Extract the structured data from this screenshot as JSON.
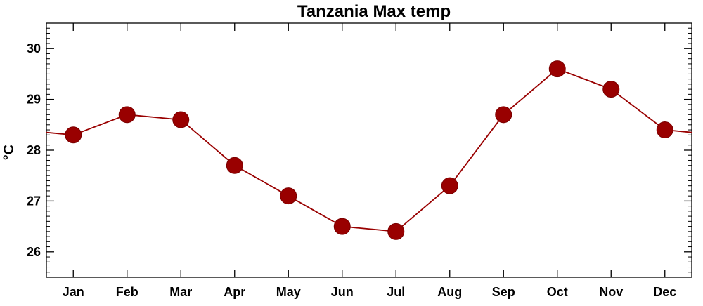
{
  "chart_data": {
    "type": "line",
    "title": "Tanzania Max temp",
    "xlabel": "",
    "ylabel": "°C",
    "categories": [
      "Jan",
      "Feb",
      "Mar",
      "Apr",
      "May",
      "Jun",
      "Jul",
      "Aug",
      "Sep",
      "Oct",
      "Nov",
      "Dec"
    ],
    "series": [
      {
        "values": [
          28.3,
          28.7,
          28.6,
          27.7,
          27.1,
          26.5,
          26.4,
          27.3,
          28.7,
          29.6,
          29.2,
          28.4
        ]
      }
    ],
    "ylim": [
      25.5,
      30.5
    ],
    "yticks": [
      "26",
      "27",
      "28",
      "29",
      "30"
    ],
    "series_color": "#990000",
    "grid": false,
    "legend": "none"
  }
}
